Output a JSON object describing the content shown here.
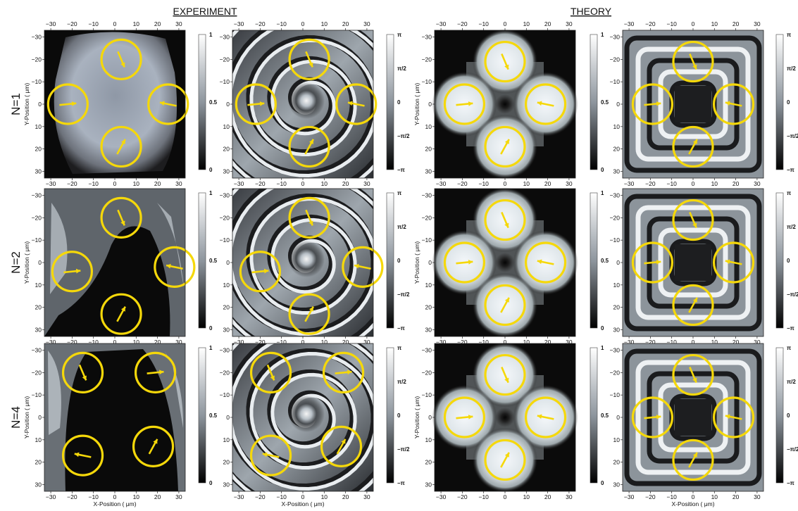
{
  "sections": {
    "experiment": "EXPERIMENT",
    "theory": "THEORY"
  },
  "rows": [
    {
      "label": "N=1"
    },
    {
      "label": "N=2"
    },
    {
      "label": "N=4"
    }
  ],
  "axes": {
    "xlabel": "X-Position ( μm)",
    "ylabel": "Y-Position ( μm)",
    "x_ticks": [
      "−30",
      "−20",
      "−10",
      "0",
      "10",
      "20",
      "30"
    ],
    "y_ticks": [
      "−30",
      "−20",
      "−10",
      "0",
      "10",
      "20",
      "30"
    ],
    "range": [
      -33,
      33
    ]
  },
  "colorbars": {
    "amplitude": [
      "1",
      "0.5",
      "0"
    ],
    "phase": [
      "π",
      "π/2",
      "0",
      "−π/2",
      "−π"
    ]
  },
  "colors": {
    "marker": "#f5d80a",
    "background": "#ffffff"
  },
  "markers": {
    "N=1": [
      {
        "cx": 3,
        "cy": -20
      },
      {
        "cx": -22,
        "cy": 0
      },
      {
        "cx": 25,
        "cy": 0
      },
      {
        "cx": 3,
        "cy": 19
      }
    ],
    "N=2": [
      {
        "cx": 3,
        "cy": -20
      },
      {
        "cx": -20,
        "cy": 4
      },
      {
        "cx": 28,
        "cy": 2
      },
      {
        "cx": 3,
        "cy": 23
      }
    ],
    "N=4": [
      {
        "cx": -15,
        "cy": -20
      },
      {
        "cx": 19,
        "cy": -20
      },
      {
        "cx": -15,
        "cy": 17
      },
      {
        "cx": 18,
        "cy": 13
      }
    ],
    "theory": [
      {
        "cx": 0,
        "cy": -19
      },
      {
        "cx": -19,
        "cy": 0
      },
      {
        "cx": 19,
        "cy": 0
      },
      {
        "cx": 0,
        "cy": 19
      }
    ]
  }
}
